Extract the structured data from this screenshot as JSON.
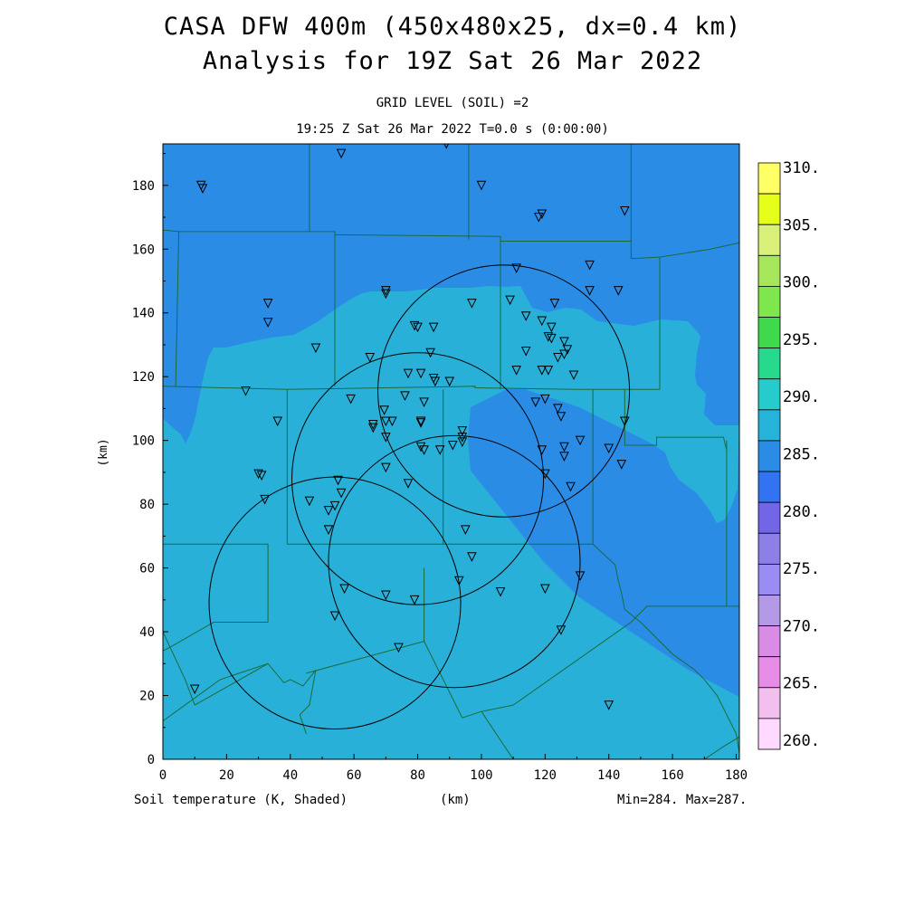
{
  "title": {
    "line1": "CASA DFW 400m (450x480x25, dx=0.4 km)",
    "line2": "Analysis for 19Z Sat 26 Mar 2022"
  },
  "subtitle": {
    "level": "GRID LEVEL (SOIL) =2",
    "time": "19:25 Z Sat 26 Mar 2022   T=0.0 s (0:00:00)"
  },
  "footer": {
    "field": "Soil temperature (K, Shaded)",
    "xunit": "(km)",
    "minmax": "Min=284. Max=287."
  },
  "axes": {
    "ylabel": "(km)",
    "xticks": [
      "0",
      "20",
      "40",
      "60",
      "80",
      "100",
      "120",
      "140",
      "160",
      "180"
    ],
    "yticks": [
      "0",
      "20",
      "40",
      "60",
      "80",
      "100",
      "120",
      "140",
      "160",
      "180"
    ],
    "xlim": [
      0,
      181
    ],
    "ylim": [
      0,
      193
    ]
  },
  "colorbar": {
    "labels": [
      "310.",
      "305.",
      "300.",
      "295.",
      "290.",
      "285.",
      "280.",
      "275.",
      "270.",
      "265.",
      "260."
    ],
    "colors": [
      "#ffff66",
      "#e6ff1a",
      "#d9f07a",
      "#a6e65a",
      "#80e64d",
      "#40d94d",
      "#26d98c",
      "#26cccc",
      "#26b3d9",
      "#2b8ce6",
      "#3373f2",
      "#7366e6",
      "#8c80e6",
      "#998cf2",
      "#b399e6",
      "#d98ce6",
      "#e68ce6",
      "#f2bfee",
      "#ffd9ff"
    ]
  },
  "map": {
    "field_colors": {
      "warm": "#29b0d8",
      "cool": "#2b8ce6"
    },
    "circles": [
      {
        "cx": 107,
        "cy": 115.5,
        "r": 39.5
      },
      {
        "cx": 80,
        "cy": 88,
        "r": 39.5
      },
      {
        "cx": 91.5,
        "cy": 62,
        "r": 39.5
      },
      {
        "cx": 54,
        "cy": 49,
        "r": 39.5
      }
    ],
    "stations": [
      [
        12,
        180
      ],
      [
        12.5,
        179
      ],
      [
        56,
        190
      ],
      [
        89,
        193
      ],
      [
        100,
        180
      ],
      [
        119,
        171
      ],
      [
        118,
        170
      ],
      [
        145,
        172
      ],
      [
        134,
        155
      ],
      [
        111,
        154
      ],
      [
        134,
        147
      ],
      [
        143,
        147
      ],
      [
        70,
        147
      ],
      [
        70,
        146
      ],
      [
        33,
        143
      ],
      [
        97,
        143
      ],
      [
        109,
        144
      ],
      [
        123,
        143
      ],
      [
        33,
        137
      ],
      [
        79,
        136
      ],
      [
        80,
        135.5
      ],
      [
        85,
        135.5
      ],
      [
        114,
        139
      ],
      [
        119,
        137.5
      ],
      [
        122,
        135.5
      ],
      [
        121,
        132.5
      ],
      [
        122,
        132
      ],
      [
        126,
        131
      ],
      [
        48,
        129
      ],
      [
        114,
        128
      ],
      [
        127,
        128.5
      ],
      [
        126,
        127
      ],
      [
        124,
        126
      ],
      [
        65,
        126
      ],
      [
        84,
        127.5
      ],
      [
        111,
        122
      ],
      [
        119,
        122
      ],
      [
        77,
        121
      ],
      [
        81,
        121
      ],
      [
        121,
        122
      ],
      [
        129,
        120.5
      ],
      [
        85,
        119.5
      ],
      [
        90,
        118.5
      ],
      [
        85.5,
        118.5
      ],
      [
        76,
        114
      ],
      [
        82,
        112
      ],
      [
        59,
        113
      ],
      [
        117,
        112
      ],
      [
        120,
        113
      ],
      [
        124,
        110
      ],
      [
        125,
        107.5
      ],
      [
        26,
        115.5
      ],
      [
        36,
        106
      ],
      [
        66,
        105
      ],
      [
        72,
        106
      ],
      [
        70,
        106
      ],
      [
        81,
        106
      ],
      [
        81,
        105.5
      ],
      [
        66,
        104
      ],
      [
        94,
        103
      ],
      [
        69.5,
        109.5
      ],
      [
        70,
        101
      ],
      [
        94,
        101
      ],
      [
        94,
        99.5
      ],
      [
        91,
        98.5
      ],
      [
        81,
        98
      ],
      [
        82,
        97
      ],
      [
        87,
        97
      ],
      [
        119,
        97
      ],
      [
        126,
        98
      ],
      [
        131,
        100
      ],
      [
        140,
        97.5
      ],
      [
        145,
        106
      ],
      [
        126,
        95
      ],
      [
        144,
        92.5
      ],
      [
        70,
        91.5
      ],
      [
        30,
        89.5
      ],
      [
        31,
        89
      ],
      [
        120,
        89.5
      ],
      [
        77,
        86.5
      ],
      [
        128,
        85.5
      ],
      [
        55,
        87.5
      ],
      [
        56,
        83.5
      ],
      [
        46,
        81
      ],
      [
        54,
        79.5
      ],
      [
        52,
        78
      ],
      [
        32,
        81.5
      ],
      [
        52,
        72
      ],
      [
        95,
        72
      ],
      [
        97,
        63.5
      ],
      [
        131,
        57.5
      ],
      [
        93,
        56
      ],
      [
        57,
        53.5
      ],
      [
        70,
        51.5
      ],
      [
        79,
        50
      ],
      [
        106,
        52.5
      ],
      [
        120,
        53.5
      ],
      [
        54,
        45
      ],
      [
        125,
        40.5
      ],
      [
        74,
        35
      ],
      [
        10,
        22
      ],
      [
        140,
        17
      ]
    ],
    "boundaries": [
      [
        [
          46,
          193
        ],
        [
          46,
          165.5
        ]
      ],
      [
        [
          96,
          193
        ],
        [
          96,
          163
        ]
      ],
      [
        [
          147,
          193
        ],
        [
          147,
          157
        ]
      ],
      [
        [
          5,
          165.5
        ],
        [
          54,
          165.5
        ],
        [
          54,
          165
        ]
      ],
      [
        [
          54,
          165.5
        ],
        [
          54,
          164.5
        ],
        [
          106,
          164
        ],
        [
          106,
          162.5
        ],
        [
          147,
          162.5
        ]
      ],
      [
        [
          147,
          157
        ],
        [
          156,
          157.5
        ],
        [
          172,
          160
        ],
        [
          181,
          162
        ]
      ],
      [
        [
          54,
          164.5
        ],
        [
          54,
          117
        ]
      ],
      [
        [
          106,
          162.5
        ],
        [
          106,
          116
        ]
      ],
      [
        [
          156,
          157.5
        ],
        [
          156,
          116
        ]
      ],
      [
        [
          0,
          166
        ],
        [
          5,
          165.5
        ],
        [
          4,
          117
        ]
      ],
      [
        [
          0,
          117
        ],
        [
          39,
          116
        ],
        [
          98,
          117
        ],
        [
          98,
          116.5
        ],
        [
          131,
          116
        ],
        [
          156,
          116
        ]
      ],
      [
        [
          39,
          116
        ],
        [
          39,
          67.5
        ]
      ],
      [
        [
          88,
          116
        ],
        [
          88,
          67.5
        ]
      ],
      [
        [
          135,
          116
        ],
        [
          135,
          67.5
        ]
      ],
      [
        [
          145,
          116
        ],
        [
          145,
          98.5
        ],
        [
          155,
          98.5
        ],
        [
          155,
          101
        ],
        [
          170,
          101
        ],
        [
          176,
          101
        ],
        [
          177,
          97
        ]
      ],
      [
        [
          177,
          100
        ],
        [
          177,
          48
        ],
        [
          181,
          48
        ]
      ],
      [
        [
          39,
          67.5
        ],
        [
          88,
          67.5
        ],
        [
          135,
          67.5
        ]
      ],
      [
        [
          0,
          67.5
        ],
        [
          33,
          67.5
        ],
        [
          33,
          43
        ]
      ],
      [
        [
          33,
          43
        ],
        [
          16,
          43
        ],
        [
          2,
          35
        ],
        [
          0,
          34
        ]
      ],
      [
        [
          0,
          40
        ],
        [
          7,
          25
        ],
        [
          10,
          17
        ]
      ],
      [
        [
          10,
          17
        ],
        [
          33,
          30
        ]
      ],
      [
        [
          0,
          12
        ],
        [
          18,
          25
        ],
        [
          33,
          30
        ],
        [
          38,
          24
        ],
        [
          40,
          25
        ],
        [
          44,
          23
        ],
        [
          48,
          28
        ],
        [
          46,
          17
        ],
        [
          43,
          14
        ],
        [
          45,
          8
        ]
      ],
      [
        [
          45,
          27
        ],
        [
          82,
          37
        ]
      ],
      [
        [
          82,
          37
        ],
        [
          82,
          60
        ]
      ],
      [
        [
          82,
          37
        ],
        [
          94,
          13
        ],
        [
          100,
          15
        ],
        [
          110,
          17
        ]
      ],
      [
        [
          110,
          17
        ],
        [
          147,
          43
        ],
        [
          152,
          48
        ],
        [
          177,
          48
        ]
      ],
      [
        [
          135,
          67.5
        ],
        [
          142,
          61
        ],
        [
          143,
          56
        ],
        [
          144,
          52
        ],
        [
          145,
          47
        ],
        [
          150,
          43
        ],
        [
          155,
          38
        ],
        [
          160,
          33
        ],
        [
          167,
          28
        ],
        [
          170,
          25
        ],
        [
          174,
          20
        ],
        [
          177,
          14
        ],
        [
          180,
          8
        ],
        [
          181,
          2
        ]
      ],
      [
        [
          100,
          15
        ],
        [
          110,
          0
        ]
      ],
      [
        [
          170,
          0
        ],
        [
          176,
          4
        ],
        [
          181,
          7
        ]
      ]
    ]
  }
}
